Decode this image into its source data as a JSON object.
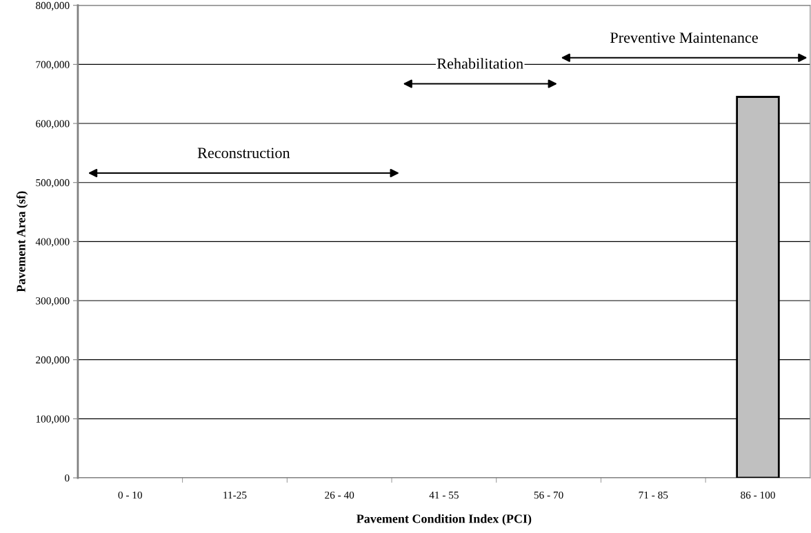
{
  "chart_data": {
    "type": "bar",
    "xlabel": "Pavement Condition Index (PCI)",
    "ylabel": "Pavement Area (sf)",
    "categories": [
      "0 - 10",
      "11-25",
      "26 - 40",
      "41 - 55",
      "56 - 70",
      "71 - 85",
      "86 - 100"
    ],
    "values": [
      0,
      0,
      0,
      0,
      0,
      0,
      645000
    ],
    "color": "#c0c0c0",
    "ylim": [
      0,
      800000
    ],
    "yticks": [
      {
        "value": 0,
        "label": "0"
      },
      {
        "value": 100000,
        "label": "100,000"
      },
      {
        "value": 200000,
        "label": "200,000"
      },
      {
        "value": 300000,
        "label": "300,000"
      },
      {
        "value": 400000,
        "label": "400,000"
      },
      {
        "value": 500000,
        "label": "500,000"
      },
      {
        "value": 600000,
        "label": "600,000"
      },
      {
        "value": 700000,
        "label": "700,000"
      },
      {
        "value": 800000,
        "label": "800,000"
      }
    ],
    "grid": "y",
    "annotations": [
      "Reconstruction",
      "Rehabilitation",
      "Preventive Maintenance"
    ]
  }
}
